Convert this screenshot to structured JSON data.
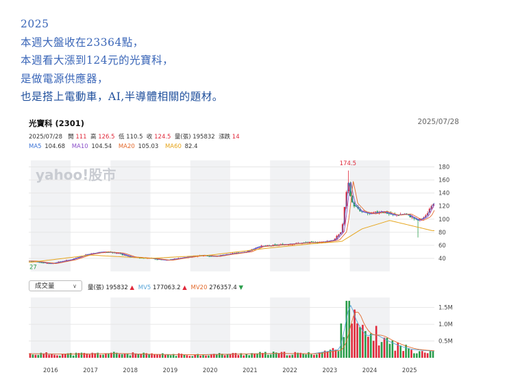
{
  "intro": {
    "lines": [
      "2025",
      "本週大盤收在23364點，",
      "本週看大漲到124元的光寶科，",
      "是做電源供應器，",
      "也是搭上電動車，AI,半導體相關的題材。"
    ]
  },
  "stock": {
    "name": "光寶科 (2301)",
    "date_right": "2025/07/28",
    "quote": {
      "date": "2025/07/28",
      "open_label": "開",
      "open": "111",
      "high_label": "高",
      "high": "126.5",
      "low_label": "低",
      "low": "110.5",
      "close_label": "收",
      "close": "124.5",
      "vol_label": "量(張)",
      "vol": "195832",
      "chg_label": "漲跌",
      "chg": "14"
    },
    "ma": [
      {
        "label": "MA5",
        "value": "104.68",
        "color": "#3b73d6"
      },
      {
        "label": "MA10",
        "value": "104.54",
        "color": "#8a4fc9"
      },
      {
        "label": "MA20",
        "value": "105.03",
        "color": "#e36a2c"
      },
      {
        "label": "MA60",
        "value": "82.4",
        "color": "#e6a51c"
      }
    ],
    "watermark": "yahoo!股市",
    "volume_selector": "成交量",
    "vol_legend": [
      {
        "label": "量(張)",
        "value": "195832",
        "color": "#333333",
        "up": true
      },
      {
        "label": "MV5",
        "value": "177063.2",
        "color": "#56a4d8",
        "up": true
      },
      {
        "label": "MV20",
        "value": "276357.4",
        "color": "#e36a2c",
        "up": false
      }
    ]
  },
  "chart_data": {
    "type": "candlestick",
    "x": [
      "2016",
      "2017",
      "2018",
      "2019",
      "2020",
      "2021",
      "2022",
      "2023",
      "2024",
      "2025"
    ],
    "price_axis": {
      "ticks": [
        "40",
        "60",
        "80",
        "100",
        "120",
        "140",
        "160",
        "180"
      ],
      "ylim": [
        20,
        190
      ]
    },
    "price_annotations": [
      {
        "label": "174.5",
        "value": 174.5
      },
      {
        "label": "27",
        "value": 27
      }
    ],
    "close_series": [
      {
        "t": 2015.5,
        "v": 36
      },
      {
        "t": 2016.0,
        "v": 32
      },
      {
        "t": 2016.5,
        "v": 38
      },
      {
        "t": 2016.9,
        "v": 46
      },
      {
        "t": 2017.3,
        "v": 50
      },
      {
        "t": 2017.7,
        "v": 48
      },
      {
        "t": 2018.0,
        "v": 42
      },
      {
        "t": 2018.5,
        "v": 40
      },
      {
        "t": 2018.9,
        "v": 37
      },
      {
        "t": 2019.3,
        "v": 41
      },
      {
        "t": 2019.8,
        "v": 45
      },
      {
        "t": 2020.1,
        "v": 43
      },
      {
        "t": 2020.4,
        "v": 46
      },
      {
        "t": 2020.9,
        "v": 50
      },
      {
        "t": 2021.2,
        "v": 58
      },
      {
        "t": 2021.6,
        "v": 60
      },
      {
        "t": 2022.0,
        "v": 62
      },
      {
        "t": 2022.4,
        "v": 64
      },
      {
        "t": 2022.8,
        "v": 65
      },
      {
        "t": 2023.1,
        "v": 68
      },
      {
        "t": 2023.3,
        "v": 82
      },
      {
        "t": 2023.45,
        "v": 160
      },
      {
        "t": 2023.55,
        "v": 125
      },
      {
        "t": 2023.75,
        "v": 112
      },
      {
        "t": 2024.0,
        "v": 108
      },
      {
        "t": 2024.3,
        "v": 112
      },
      {
        "t": 2024.6,
        "v": 106
      },
      {
        "t": 2024.9,
        "v": 108
      },
      {
        "t": 2025.2,
        "v": 98
      },
      {
        "t": 2025.4,
        "v": 104
      },
      {
        "t": 2025.57,
        "v": 124.5
      }
    ],
    "ma60_series": [
      {
        "t": 2015.5,
        "v": 34
      },
      {
        "t": 2017.0,
        "v": 45
      },
      {
        "t": 2018.5,
        "v": 40
      },
      {
        "t": 2020.0,
        "v": 45
      },
      {
        "t": 2021.5,
        "v": 56
      },
      {
        "t": 2022.5,
        "v": 62
      },
      {
        "t": 2023.3,
        "v": 66
      },
      {
        "t": 2023.8,
        "v": 85
      },
      {
        "t": 2024.5,
        "v": 98
      },
      {
        "t": 2025.57,
        "v": 82.4
      }
    ],
    "volume_axis": {
      "ticks": [
        "0.5M",
        "1.0M",
        "1.5M"
      ],
      "ylim": [
        0,
        1800000
      ]
    },
    "volume_series": [
      {
        "t": 2015.5,
        "v": 120000
      },
      {
        "t": 2016.5,
        "v": 110000
      },
      {
        "t": 2017.5,
        "v": 130000
      },
      {
        "t": 2018.5,
        "v": 100000
      },
      {
        "t": 2019.5,
        "v": 90000
      },
      {
        "t": 2020.5,
        "v": 110000
      },
      {
        "t": 2021.5,
        "v": 130000
      },
      {
        "t": 2022.5,
        "v": 120000
      },
      {
        "t": 2023.2,
        "v": 250000
      },
      {
        "t": 2023.45,
        "v": 1700000
      },
      {
        "t": 2023.6,
        "v": 1100000
      },
      {
        "t": 2023.85,
        "v": 650000
      },
      {
        "t": 2024.1,
        "v": 700000
      },
      {
        "t": 2024.4,
        "v": 500000
      },
      {
        "t": 2024.7,
        "v": 350000
      },
      {
        "t": 2025.0,
        "v": 250000
      },
      {
        "t": 2025.3,
        "v": 220000
      },
      {
        "t": 2025.57,
        "v": 195832
      }
    ]
  }
}
